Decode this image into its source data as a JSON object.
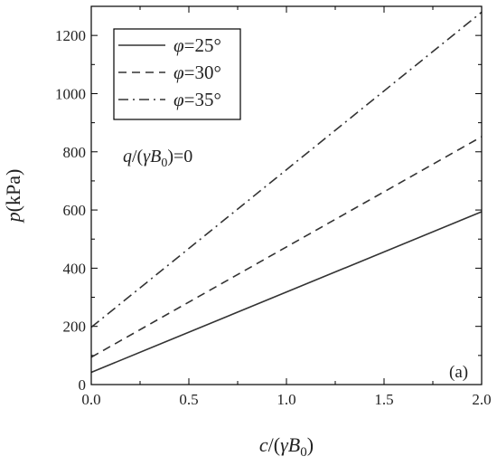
{
  "chart_data": {
    "type": "line",
    "xlabel": {
      "pre": "c",
      "mid": "/(",
      "greek": "γ",
      "var": "B",
      "sub": "0",
      "post": ")"
    },
    "ylabel": {
      "var": "p",
      "unit": "(kPa)"
    },
    "xlim": [
      0.0,
      2.0
    ],
    "ylim": [
      0,
      1300
    ],
    "xticks": [
      0.0,
      0.5,
      1.0,
      1.5,
      2.0
    ],
    "xtick_labels": [
      "0.0",
      "0.5",
      "1.0",
      "1.5",
      "2.0"
    ],
    "yticks": [
      0,
      200,
      400,
      600,
      800,
      1000,
      1200
    ],
    "ytick_labels": [
      "0",
      "200",
      "400",
      "600",
      "800",
      "1000",
      "1200"
    ],
    "grid": false,
    "legend_position": "top-left",
    "annotation": {
      "var1": "q",
      "mid": "/(",
      "greek": "γ",
      "var2": "B",
      "sub": "0",
      "post": ")=0"
    },
    "panel_label": "(a)",
    "series": [
      {
        "name": "φ=25°",
        "phi": "φ",
        "value": "=25°",
        "dash": "solid",
        "x": [
          0.0,
          2.0
        ],
        "y": [
          42,
          594
        ]
      },
      {
        "name": "φ=30°",
        "phi": "φ",
        "value": "=30°",
        "dash": "dashed",
        "x": [
          0.0,
          2.0
        ],
        "y": [
          94,
          852
        ]
      },
      {
        "name": "φ=35°",
        "phi": "φ",
        "value": "=35°",
        "dash": "dashdot",
        "x": [
          0.0,
          2.0
        ],
        "y": [
          197,
          1280
        ]
      }
    ]
  }
}
